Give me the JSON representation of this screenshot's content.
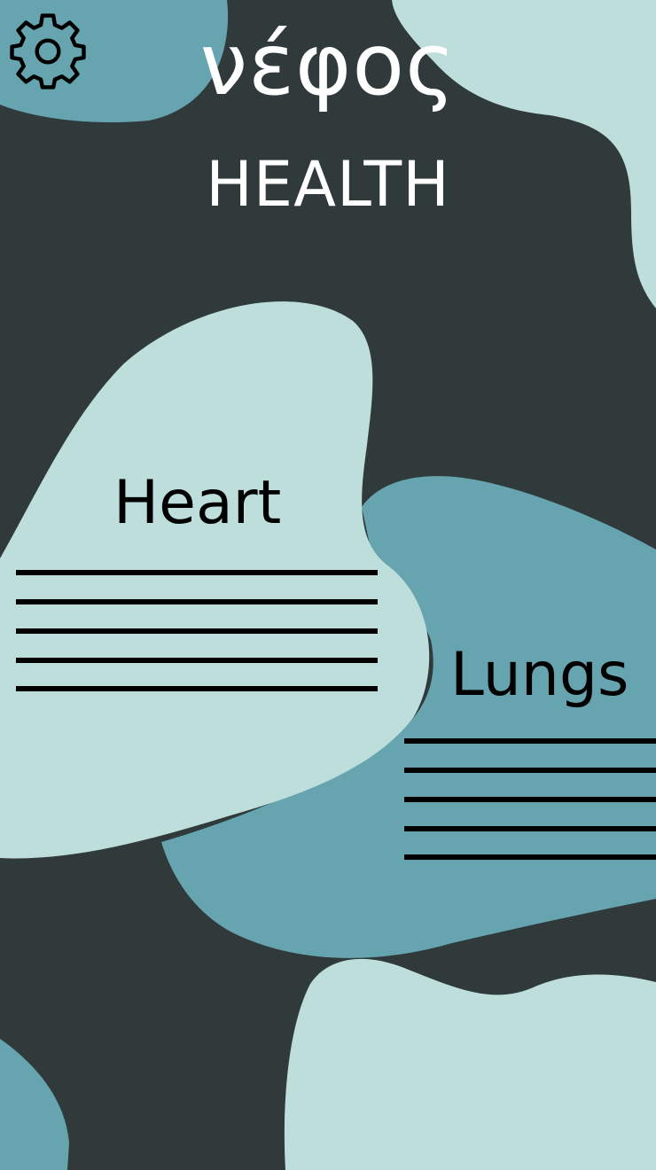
{
  "app": {
    "title": "νέφος",
    "subtitle": "HEALTH"
  },
  "settings": {
    "icon": "gear-icon"
  },
  "cards": {
    "heart": {
      "label": "Heart",
      "line_count": 5
    },
    "lungs": {
      "label": "Lungs",
      "line_count": 5
    }
  },
  "colors": {
    "background": "#303a3a",
    "blob_light": "#bddedb",
    "blob_teal": "#66a5b0",
    "title_text": "#ffffff",
    "card_text": "#000000"
  }
}
